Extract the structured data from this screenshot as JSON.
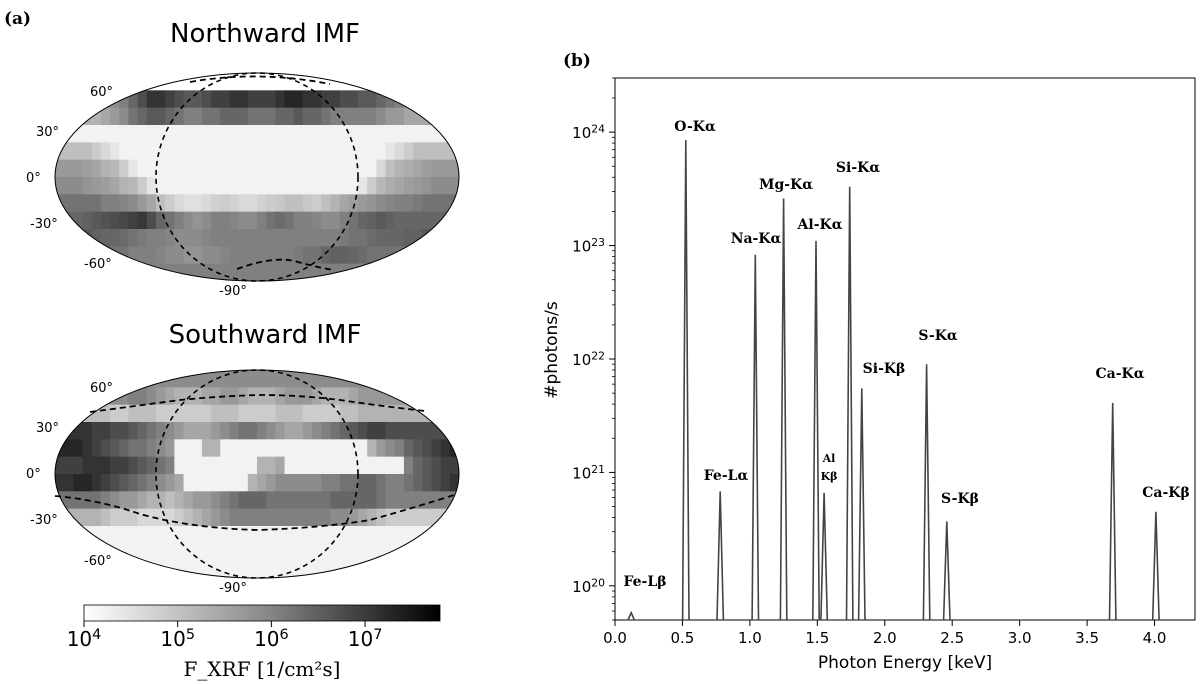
{
  "panel_a_label": "(a)",
  "panel_b_label": "(b)",
  "maps": [
    {
      "title": "Northward IMF",
      "lat_labels": [
        "60°",
        "30°",
        "0°",
        "-30°",
        "-60°",
        "-90°"
      ],
      "grid": [
        [
          0,
          0,
          0,
          0,
          0,
          0,
          0,
          0,
          0,
          0,
          0,
          0,
          0,
          0,
          0,
          0,
          0,
          0,
          0,
          0,
          0,
          0,
          0,
          0,
          0,
          0,
          0,
          0,
          0,
          0,
          0,
          0,
          0,
          0,
          0,
          0,
          0,
          0,
          0,
          0,
          0,
          0,
          0,
          0
        ],
        [
          0.45,
          0.45,
          0.45,
          0.45,
          0.45,
          0.45,
          0.45,
          0.5,
          0.6,
          0.7,
          0.8,
          0.8,
          0.75,
          0.7,
          0.65,
          0.65,
          0.7,
          0.75,
          0.75,
          0.8,
          0.8,
          0.75,
          0.75,
          0.75,
          0.8,
          0.85,
          0.85,
          0.8,
          0.8,
          0.75,
          0.75,
          0.7,
          0.7,
          0.65,
          0.65,
          0.6,
          0.55,
          0.5,
          0.5,
          0.5,
          0.5,
          0.5,
          0.5,
          0.5
        ],
        [
          0.3,
          0.3,
          0.3,
          0.3,
          0.3,
          0.35,
          0.4,
          0.45,
          0.55,
          0.6,
          0.65,
          0.65,
          0.6,
          0.55,
          0.5,
          0.5,
          0.55,
          0.55,
          0.6,
          0.6,
          0.6,
          0.55,
          0.55,
          0.55,
          0.6,
          0.6,
          0.65,
          0.6,
          0.6,
          0.55,
          0.5,
          0.5,
          0.5,
          0.5,
          0.5,
          0.45,
          0.4,
          0.4,
          0.35,
          0.35,
          0.35,
          0.35,
          0.35,
          0.35
        ],
        [
          0.05,
          0.05,
          0.05,
          0.05,
          0.05,
          0.05,
          0.05,
          0.05,
          0.05,
          0.05,
          0.05,
          0.05,
          0.05,
          0.05,
          0.05,
          0.05,
          0.05,
          0.05,
          0.05,
          0.05,
          0.05,
          0.05,
          0.05,
          0.05,
          0.05,
          0.05,
          0.05,
          0.05,
          0.05,
          0.05,
          0.05,
          0.05,
          0.05,
          0.05,
          0.05,
          0.05,
          0.05,
          0.05,
          0.05,
          0.05,
          0.05,
          0.05,
          0.05,
          0.05
        ],
        [
          0.25,
          0.25,
          0.25,
          0.25,
          0.2,
          0.15,
          0.1,
          0.05,
          0.05,
          0.05,
          0.05,
          0.05,
          0.05,
          0.05,
          0.05,
          0.05,
          0.05,
          0.05,
          0.05,
          0.05,
          0.05,
          0.05,
          0.05,
          0.05,
          0.05,
          0.05,
          0.05,
          0.05,
          0.05,
          0.05,
          0.05,
          0.05,
          0.05,
          0.05,
          0.05,
          0.05,
          0.1,
          0.15,
          0.2,
          0.25,
          0.25,
          0.25,
          0.25,
          0.25
        ],
        [
          0.4,
          0.4,
          0.4,
          0.38,
          0.35,
          0.3,
          0.28,
          0.2,
          0.1,
          0.05,
          0.05,
          0.05,
          0.05,
          0.05,
          0.05,
          0.05,
          0.05,
          0.05,
          0.05,
          0.05,
          0.05,
          0.05,
          0.05,
          0.05,
          0.05,
          0.05,
          0.05,
          0.05,
          0.05,
          0.05,
          0.05,
          0.05,
          0.05,
          0.05,
          0.05,
          0.15,
          0.25,
          0.3,
          0.32,
          0.35,
          0.38,
          0.4,
          0.4,
          0.4
        ],
        [
          0.45,
          0.45,
          0.45,
          0.42,
          0.4,
          0.38,
          0.35,
          0.3,
          0.28,
          0.2,
          0.1,
          0.05,
          0.05,
          0.05,
          0.05,
          0.05,
          0.05,
          0.05,
          0.05,
          0.05,
          0.05,
          0.05,
          0.05,
          0.05,
          0.05,
          0.05,
          0.05,
          0.05,
          0.05,
          0.05,
          0.05,
          0.05,
          0.05,
          0.1,
          0.2,
          0.28,
          0.32,
          0.35,
          0.38,
          0.4,
          0.42,
          0.45,
          0.45,
          0.45
        ],
        [
          0.55,
          0.55,
          0.55,
          0.55,
          0.55,
          0.5,
          0.5,
          0.48,
          0.45,
          0.4,
          0.35,
          0.25,
          0.2,
          0.15,
          0.12,
          0.12,
          0.15,
          0.18,
          0.2,
          0.18,
          0.15,
          0.15,
          0.18,
          0.2,
          0.22,
          0.25,
          0.25,
          0.22,
          0.2,
          0.25,
          0.3,
          0.35,
          0.38,
          0.4,
          0.42,
          0.45,
          0.48,
          0.5,
          0.5,
          0.52,
          0.55,
          0.55,
          0.55,
          0.55
        ],
        [
          0.6,
          0.6,
          0.6,
          0.62,
          0.65,
          0.68,
          0.7,
          0.72,
          0.75,
          0.78,
          0.7,
          0.6,
          0.55,
          0.5,
          0.45,
          0.42,
          0.45,
          0.5,
          0.5,
          0.48,
          0.45,
          0.45,
          0.5,
          0.55,
          0.58,
          0.55,
          0.5,
          0.5,
          0.48,
          0.45,
          0.45,
          0.5,
          0.55,
          0.6,
          0.62,
          0.65,
          0.62,
          0.6,
          0.6,
          0.6,
          0.6,
          0.6,
          0.6,
          0.6
        ],
        [
          0.65,
          0.65,
          0.65,
          0.65,
          0.62,
          0.6,
          0.6,
          0.58,
          0.55,
          0.52,
          0.5,
          0.5,
          0.48,
          0.45,
          0.45,
          0.45,
          0.48,
          0.5,
          0.5,
          0.5,
          0.5,
          0.5,
          0.5,
          0.5,
          0.5,
          0.5,
          0.5,
          0.5,
          0.5,
          0.5,
          0.5,
          0.52,
          0.55,
          0.55,
          0.58,
          0.6,
          0.6,
          0.6,
          0.62,
          0.62,
          0.65,
          0.65,
          0.65,
          0.65
        ],
        [
          0.55,
          0.55,
          0.55,
          0.55,
          0.55,
          0.55,
          0.55,
          0.55,
          0.5,
          0.5,
          0.5,
          0.48,
          0.45,
          0.45,
          0.42,
          0.42,
          0.45,
          0.45,
          0.48,
          0.5,
          0.5,
          0.5,
          0.5,
          0.5,
          0.5,
          0.5,
          0.52,
          0.55,
          0.55,
          0.6,
          0.62,
          0.62,
          0.6,
          0.58,
          0.55,
          0.55,
          0.55,
          0.55,
          0.55,
          0.55,
          0.55,
          0.55,
          0.55,
          0.55
        ],
        [
          0.5,
          0.5,
          0.5,
          0.5,
          0.5,
          0.5,
          0.5,
          0.5,
          0.5,
          0.5,
          0.5,
          0.5,
          0.5,
          0.5,
          0.5,
          0.5,
          0.5,
          0.5,
          0.5,
          0.5,
          0.5,
          0.5,
          0.5,
          0.5,
          0.5,
          0.5,
          0.5,
          0.5,
          0.5,
          0.5,
          0.5,
          0.5,
          0.5,
          0.5,
          0.5,
          0.5,
          0.5,
          0.5,
          0.5,
          0.5,
          0.5,
          0.5,
          0.5,
          0.5
        ]
      ]
    },
    {
      "title": "Southward IMF",
      "lat_labels": [
        "60°",
        "30°",
        "0°",
        "-30°",
        "-60°",
        "-90°"
      ],
      "grid": [
        [
          0.45,
          0.45,
          0.45,
          0.45,
          0.45,
          0.45,
          0.45,
          0.45,
          0.45,
          0.45,
          0.45,
          0.45,
          0.45,
          0.45,
          0.45,
          0.45,
          0.45,
          0.45,
          0.45,
          0.45,
          0.45,
          0.45,
          0.45,
          0.45,
          0.45,
          0.45,
          0.45,
          0.45,
          0.45,
          0.45,
          0.45,
          0.45,
          0.45,
          0.45,
          0.45,
          0.45,
          0.45,
          0.45,
          0.45,
          0.45,
          0.45,
          0.45,
          0.45,
          0.45
        ],
        [
          0.4,
          0.4,
          0.4,
          0.4,
          0.4,
          0.4,
          0.45,
          0.45,
          0.5,
          0.5,
          0.45,
          0.4,
          0.35,
          0.3,
          0.3,
          0.3,
          0.35,
          0.35,
          0.4,
          0.4,
          0.35,
          0.3,
          0.3,
          0.3,
          0.35,
          0.4,
          0.4,
          0.4,
          0.35,
          0.3,
          0.3,
          0.3,
          0.35,
          0.4,
          0.4,
          0.4,
          0.4,
          0.4,
          0.4,
          0.4,
          0.4,
          0.4,
          0.4,
          0.4
        ],
        [
          0.25,
          0.25,
          0.25,
          0.25,
          0.25,
          0.25,
          0.2,
          0.2,
          0.25,
          0.25,
          0.25,
          0.2,
          0.2,
          0.2,
          0.2,
          0.2,
          0.2,
          0.25,
          0.25,
          0.25,
          0.2,
          0.2,
          0.2,
          0.2,
          0.25,
          0.25,
          0.25,
          0.2,
          0.2,
          0.2,
          0.2,
          0.25,
          0.25,
          0.3,
          0.3,
          0.3,
          0.3,
          0.3,
          0.3,
          0.3,
          0.3,
          0.3,
          0.3,
          0.3
        ],
        [
          0.8,
          0.8,
          0.8,
          0.8,
          0.75,
          0.75,
          0.7,
          0.7,
          0.65,
          0.6,
          0.55,
          0.5,
          0.45,
          0.4,
          0.35,
          0.35,
          0.35,
          0.4,
          0.45,
          0.5,
          0.55,
          0.55,
          0.5,
          0.45,
          0.4,
          0.35,
          0.35,
          0.4,
          0.45,
          0.5,
          0.55,
          0.6,
          0.65,
          0.7,
          0.75,
          0.75,
          0.7,
          0.7,
          0.7,
          0.7,
          0.7,
          0.7,
          0.7,
          0.7
        ],
        [
          0.85,
          0.85,
          0.85,
          0.8,
          0.75,
          0.7,
          0.65,
          0.6,
          0.55,
          0.55,
          0.5,
          0.45,
          0.4,
          0.05,
          0.05,
          0.05,
          0.3,
          0.3,
          0.05,
          0.05,
          0.05,
          0.05,
          0.05,
          0.05,
          0.05,
          0.05,
          0.05,
          0.05,
          0.05,
          0.05,
          0.05,
          0.05,
          0.05,
          0.05,
          0.3,
          0.4,
          0.45,
          0.5,
          0.6,
          0.65,
          0.7,
          0.75,
          0.8,
          0.85
        ],
        [
          0.75,
          0.75,
          0.75,
          0.8,
          0.8,
          0.8,
          0.75,
          0.75,
          0.7,
          0.65,
          0.6,
          0.55,
          0.5,
          0.05,
          0.05,
          0.05,
          0.05,
          0.05,
          0.05,
          0.05,
          0.05,
          0.05,
          0.3,
          0.3,
          0.35,
          0.05,
          0.05,
          0.05,
          0.05,
          0.05,
          0.05,
          0.05,
          0.05,
          0.05,
          0.05,
          0.05,
          0.05,
          0.05,
          0.5,
          0.6,
          0.65,
          0.7,
          0.75,
          0.75
        ],
        [
          0.8,
          0.8,
          0.85,
          0.85,
          0.8,
          0.75,
          0.7,
          0.65,
          0.6,
          0.55,
          0.5,
          0.45,
          0.4,
          0.35,
          0.05,
          0.05,
          0.05,
          0.05,
          0.05,
          0.05,
          0.05,
          0.3,
          0.35,
          0.4,
          0.45,
          0.45,
          0.45,
          0.45,
          0.45,
          0.5,
          0.5,
          0.55,
          0.55,
          0.6,
          0.6,
          0.55,
          0.5,
          0.5,
          0.55,
          0.6,
          0.65,
          0.7,
          0.75,
          0.8
        ],
        [
          0.55,
          0.55,
          0.55,
          0.55,
          0.55,
          0.5,
          0.45,
          0.4,
          0.4,
          0.35,
          0.3,
          0.3,
          0.25,
          0.3,
          0.35,
          0.4,
          0.4,
          0.45,
          0.5,
          0.55,
          0.6,
          0.6,
          0.6,
          0.55,
          0.55,
          0.55,
          0.55,
          0.55,
          0.55,
          0.55,
          0.6,
          0.6,
          0.6,
          0.6,
          0.6,
          0.55,
          0.5,
          0.5,
          0.5,
          0.5,
          0.5,
          0.5,
          0.5,
          0.5
        ],
        [
          0.3,
          0.3,
          0.3,
          0.3,
          0.3,
          0.25,
          0.2,
          0.2,
          0.2,
          0.15,
          0.15,
          0.15,
          0.15,
          0.2,
          0.25,
          0.3,
          0.35,
          0.4,
          0.45,
          0.5,
          0.5,
          0.5,
          0.5,
          0.5,
          0.5,
          0.5,
          0.5,
          0.5,
          0.5,
          0.5,
          0.45,
          0.45,
          0.4,
          0.35,
          0.3,
          0.25,
          0.2,
          0.2,
          0.2,
          0.2,
          0.2,
          0.2,
          0.2,
          0.2
        ],
        [
          0.05,
          0.05,
          0.05,
          0.05,
          0.05,
          0.05,
          0.05,
          0.05,
          0.05,
          0.05,
          0.05,
          0.05,
          0.05,
          0.05,
          0.05,
          0.05,
          0.05,
          0.05,
          0.05,
          0.05,
          0.05,
          0.05,
          0.05,
          0.05,
          0.05,
          0.05,
          0.05,
          0.05,
          0.05,
          0.05,
          0.05,
          0.05,
          0.05,
          0.05,
          0.05,
          0.05,
          0.05,
          0.05,
          0.05,
          0.05,
          0.05,
          0.05,
          0.05,
          0.05
        ],
        [
          0.05,
          0.05,
          0.05,
          0.05,
          0.05,
          0.05,
          0.05,
          0.05,
          0.05,
          0.05,
          0.05,
          0.05,
          0.05,
          0.05,
          0.05,
          0.05,
          0.05,
          0.05,
          0.05,
          0.05,
          0.05,
          0.05,
          0.05,
          0.05,
          0.05,
          0.05,
          0.05,
          0.05,
          0.05,
          0.05,
          0.05,
          0.05,
          0.05,
          0.05,
          0.05,
          0.05,
          0.05,
          0.05,
          0.05,
          0.05,
          0.05,
          0.05,
          0.05,
          0.05
        ],
        [
          0.05,
          0.05,
          0.05,
          0.05,
          0.05,
          0.05,
          0.05,
          0.05,
          0.05,
          0.05,
          0.05,
          0.05,
          0.05,
          0.05,
          0.05,
          0.05,
          0.05,
          0.05,
          0.05,
          0.05,
          0.05,
          0.05,
          0.05,
          0.05,
          0.05,
          0.05,
          0.05,
          0.05,
          0.05,
          0.05,
          0.05,
          0.05,
          0.05,
          0.05,
          0.05,
          0.05,
          0.05,
          0.05,
          0.05,
          0.05,
          0.05,
          0.05,
          0.05,
          0.05
        ]
      ]
    }
  ],
  "colorbar": {
    "tick_labels": [
      "10^4",
      "10^5",
      "10^6",
      "10^7"
    ],
    "label": "F_XRF [1/cm²s]",
    "range": [
      4,
      7.8
    ]
  },
  "chart_data": {
    "type": "line",
    "xlabel": "Photon Energy [keV]",
    "ylabel": "#photons/s",
    "xlim": [
      0.0,
      4.3
    ],
    "ylim": [
      5e+19,
      3e+24
    ],
    "yscale": "log",
    "x_ticks": [
      "0.0",
      "0.5",
      "1.0",
      "1.5",
      "2.0",
      "2.5",
      "3.0",
      "3.5",
      "4.0"
    ],
    "y_ticks": [
      "10^20",
      "10^21",
      "10^22",
      "10^23",
      "10^24"
    ],
    "series": [
      {
        "peaks": [
          {
            "label": "Fe-Lβ",
            "energy": 0.12,
            "value": 5.8e+19
          },
          {
            "label": "O-Kα",
            "energy": 0.525,
            "value": 8.5e+23
          },
          {
            "label": "Fe-Lα",
            "energy": 0.78,
            "value": 6.8e+20
          },
          {
            "label": "Na-Kα",
            "energy": 1.04,
            "value": 8.3e+22
          },
          {
            "label": "Mg-Kα",
            "energy": 1.25,
            "value": 2.6e+23
          },
          {
            "label": "Al-Kα",
            "energy": 1.49,
            "value": 1.1e+23
          },
          {
            "label": "Al Kβ",
            "energy": 1.55,
            "value": 6.6e+20
          },
          {
            "label": "Si-Kα",
            "energy": 1.74,
            "value": 3.3e+23
          },
          {
            "label": "Si-Kβ",
            "energy": 1.83,
            "value": 5.5e+21
          },
          {
            "label": "S-Kα",
            "energy": 2.31,
            "value": 9e+21
          },
          {
            "label": "S-Kβ",
            "energy": 2.46,
            "value": 3.7e+20
          },
          {
            "label": "Ca-Kα",
            "energy": 3.69,
            "value": 4.1e+21
          },
          {
            "label": "Ca-Kβ",
            "energy": 4.01,
            "value": 4.5e+20
          }
        ]
      }
    ]
  }
}
